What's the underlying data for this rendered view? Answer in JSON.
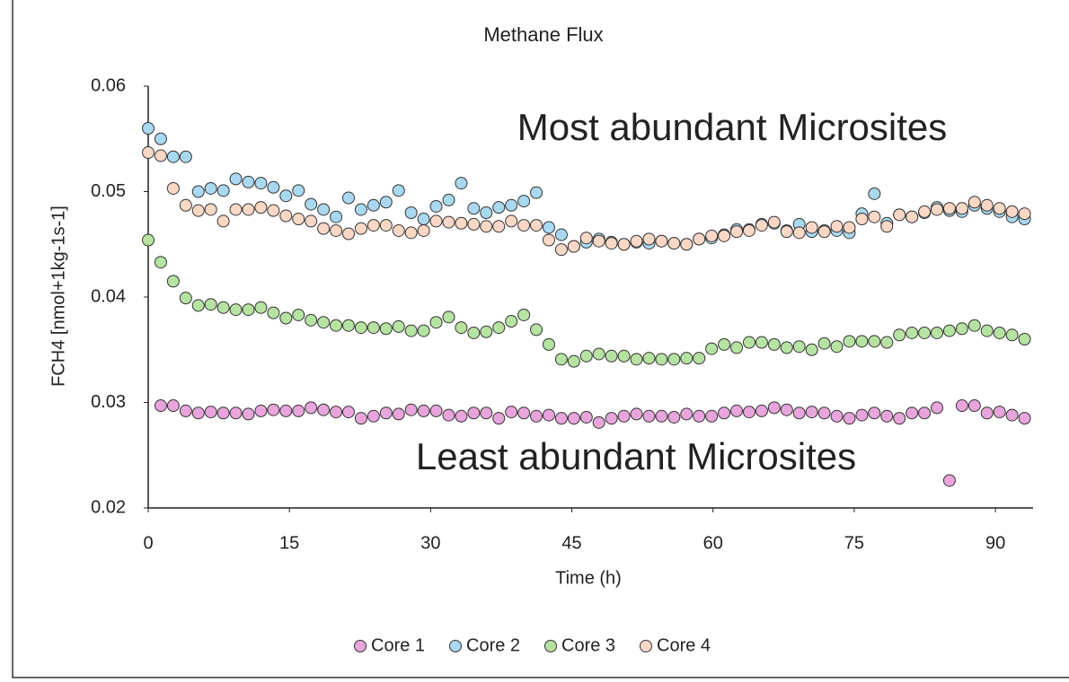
{
  "chart_data": {
    "type": "scatter",
    "title": "Methane Flux",
    "x_label": "Time (h)",
    "y_label": "FCH4 [nmol+1kg-1s-1]",
    "annotations": [
      "Most abundant Microsites",
      "Least abundant Microsites"
    ],
    "xlim": [
      0,
      94
    ],
    "xticks": [
      0,
      15,
      30,
      45,
      60,
      75,
      90
    ],
    "ylim": [
      0.02,
      0.06
    ],
    "yticks": [
      0.02,
      0.03,
      0.04,
      0.05,
      0.06
    ],
    "grid": false,
    "legend": "bottom",
    "x": [
      0,
      1.33,
      2.66,
      3.99,
      5.32,
      6.65,
      7.98,
      9.31,
      10.64,
      11.97,
      13.3,
      14.63,
      15.96,
      17.29,
      18.62,
      19.95,
      21.28,
      22.61,
      23.94,
      25.27,
      26.6,
      27.93,
      29.26,
      30.59,
      31.92,
      33.25,
      34.58,
      35.91,
      37.24,
      38.57,
      39.9,
      41.23,
      42.56,
      43.89,
      45.22,
      46.55,
      47.88,
      49.21,
      50.54,
      51.87,
      53.2,
      54.53,
      55.86,
      57.19,
      58.52,
      59.85,
      61.18,
      62.51,
      63.84,
      65.17,
      66.5,
      67.83,
      69.16,
      70.49,
      71.82,
      73.15,
      74.48,
      75.81,
      77.14,
      78.47,
      79.8,
      81.13,
      82.46,
      83.79,
      85.12,
      86.45,
      87.78,
      89.11,
      90.44,
      91.77,
      93.1
    ],
    "series": [
      {
        "name": "Core 1",
        "color": "#e8a5dc",
        "values": [
          null,
          0.0297,
          0.0297,
          0.0292,
          0.029,
          0.0291,
          0.029,
          0.029,
          0.0289,
          0.0292,
          0.0293,
          0.0292,
          0.0292,
          0.0295,
          0.0293,
          0.0291,
          0.0291,
          0.0285,
          0.0287,
          0.029,
          0.0289,
          0.0293,
          0.0292,
          0.0292,
          0.0288,
          0.0287,
          0.029,
          0.029,
          0.0285,
          0.0291,
          0.029,
          0.0287,
          0.0288,
          0.0285,
          0.0285,
          0.0286,
          0.0281,
          0.0285,
          0.0287,
          0.0289,
          0.0287,
          0.0287,
          0.0286,
          0.0289,
          0.0287,
          0.0287,
          0.029,
          0.0292,
          0.0291,
          0.0292,
          0.0295,
          0.0293,
          0.029,
          0.0291,
          0.029,
          0.0287,
          0.0285,
          0.0288,
          0.029,
          0.0287,
          0.0285,
          0.029,
          0.029,
          0.0295,
          0.0226,
          0.0297,
          0.0297,
          0.029,
          0.0291,
          0.0288,
          0.0285
        ]
      },
      {
        "name": "Core 2",
        "color": "#a9d9f0",
        "values": [
          0.056,
          0.055,
          0.0533,
          0.0533,
          0.05,
          0.0503,
          0.0501,
          0.0512,
          0.0509,
          0.0508,
          0.0504,
          0.0496,
          0.0501,
          0.0488,
          0.0483,
          0.0476,
          0.0494,
          0.0483,
          0.0487,
          0.049,
          0.0501,
          0.048,
          0.0474,
          0.0486,
          0.0492,
          0.0508,
          0.0484,
          0.048,
          0.0485,
          0.0487,
          0.0491,
          0.0499,
          0.0466,
          0.0459,
          0.0448,
          0.0452,
          0.0455,
          0.0452,
          0.045,
          0.0452,
          0.0451,
          0.0453,
          0.0451,
          0.045,
          0.0455,
          0.0456,
          0.0459,
          0.0464,
          0.0464,
          0.0469,
          0.047,
          0.0463,
          0.0469,
          0.0462,
          0.0463,
          0.0463,
          0.0461,
          0.0479,
          0.0498,
          0.047,
          0.0478,
          0.0476,
          0.048,
          0.0485,
          0.0482,
          0.0481,
          0.0487,
          0.0484,
          0.0481,
          0.0476,
          0.0474
        ]
      },
      {
        "name": "Core 3",
        "color": "#b6e3a2",
        "values": [
          0.0454,
          0.0433,
          0.0415,
          0.0399,
          0.0392,
          0.0393,
          0.039,
          0.0388,
          0.0388,
          0.039,
          0.0385,
          0.038,
          0.0383,
          0.0378,
          0.0376,
          0.0373,
          0.0373,
          0.0371,
          0.0371,
          0.037,
          0.0372,
          0.0368,
          0.0368,
          0.0376,
          0.0381,
          0.0371,
          0.0366,
          0.0367,
          0.0371,
          0.0377,
          0.0383,
          0.0369,
          0.0355,
          0.0341,
          0.0339,
          0.0344,
          0.0346,
          0.0344,
          0.0344,
          0.0341,
          0.0342,
          0.0341,
          0.0341,
          0.0342,
          0.0342,
          0.0351,
          0.0355,
          0.0352,
          0.0357,
          0.0357,
          0.0355,
          0.0352,
          0.0353,
          0.035,
          0.0356,
          0.0353,
          0.0358,
          0.0358,
          0.0358,
          0.0357,
          0.0364,
          0.0366,
          0.0366,
          0.0366,
          0.0368,
          0.037,
          0.0373,
          0.0368,
          0.0366,
          0.0364,
          0.036
        ]
      },
      {
        "name": "Core 4",
        "color": "#fbd8c6",
        "values": [
          0.0537,
          0.0534,
          0.0503,
          0.0487,
          0.0482,
          0.0483,
          0.0472,
          0.0483,
          0.0483,
          0.0485,
          0.0482,
          0.0477,
          0.0474,
          0.0472,
          0.0465,
          0.0463,
          0.046,
          0.0465,
          0.0468,
          0.0468,
          0.0463,
          0.0461,
          0.0463,
          0.0472,
          0.0471,
          0.047,
          0.0469,
          0.0467,
          0.0467,
          0.0472,
          0.0468,
          0.0468,
          0.0454,
          0.0445,
          0.0448,
          0.0456,
          0.0453,
          0.0451,
          0.045,
          0.0453,
          0.0455,
          0.0453,
          0.0451,
          0.045,
          0.0455,
          0.0458,
          0.0458,
          0.0462,
          0.0463,
          0.0468,
          0.0471,
          0.0462,
          0.0461,
          0.0466,
          0.0462,
          0.0467,
          0.0466,
          0.0474,
          0.0476,
          0.0467,
          0.0478,
          0.0476,
          0.0481,
          0.0483,
          0.0484,
          0.0484,
          0.049,
          0.0487,
          0.0484,
          0.0481,
          0.0479
        ]
      }
    ]
  }
}
